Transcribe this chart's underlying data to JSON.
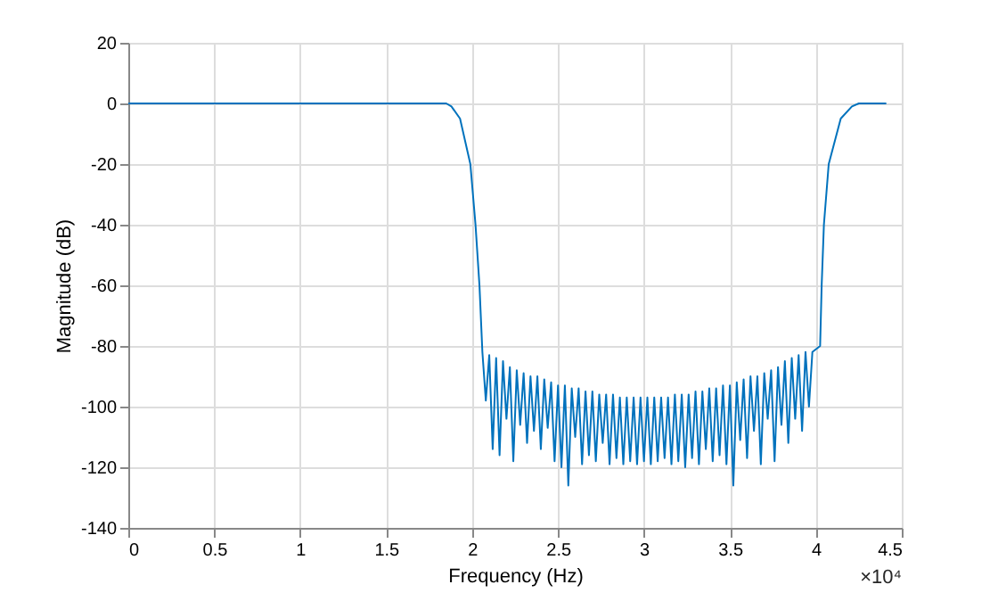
{
  "chart_data": {
    "type": "line",
    "xlabel": "Frequency (Hz)",
    "ylabel": "Magnitude (dB)",
    "annotations": [
      "×10⁴"
    ],
    "xlim": [
      0,
      4.5
    ],
    "ylim": [
      -140,
      20
    ],
    "xticks": [
      0,
      0.5,
      1,
      1.5,
      2,
      2.5,
      3,
      3.5,
      4,
      4.5
    ],
    "yticks": [
      -140,
      -120,
      -100,
      -80,
      -60,
      -40,
      -20,
      0,
      20
    ],
    "grid": true,
    "line_style": "solid",
    "series": [
      {
        "color": "#0072bd",
        "x": [
          0,
          1.8,
          1.85,
          1.88,
          1.93,
          1.99,
          2.02,
          2.043,
          2.06,
          2.08,
          2.1,
          2.12,
          2.14,
          2.16,
          2.18,
          2.2,
          2.22,
          2.24,
          2.26,
          2.28,
          2.3,
          2.32,
          2.34,
          2.36,
          2.38,
          2.4,
          2.42,
          2.44,
          2.46,
          2.48,
          2.5,
          2.52,
          2.54,
          2.56,
          2.58,
          2.6,
          2.62,
          2.64,
          2.66,
          2.68,
          2.7,
          2.72,
          2.74,
          2.76,
          2.78,
          2.8,
          2.82,
          2.84,
          2.86,
          2.88,
          2.9,
          2.92,
          2.94,
          2.96,
          2.98,
          3,
          3.02,
          3.04,
          3.06,
          3.08,
          3.1,
          3.12,
          3.14,
          3.16,
          3.18,
          3.2,
          3.22,
          3.24,
          3.26,
          3.28,
          3.3,
          3.32,
          3.34,
          3.36,
          3.38,
          3.4,
          3.42,
          3.44,
          3.46,
          3.48,
          3.5,
          3.52,
          3.54,
          3.56,
          3.58,
          3.6,
          3.62,
          3.64,
          3.66,
          3.68,
          3.7,
          3.72,
          3.74,
          3.76,
          3.78,
          3.8,
          3.82,
          3.84,
          3.86,
          3.88,
          3.9,
          3.92,
          3.94,
          3.96,
          3.98,
          4.025,
          4.034,
          4.047,
          4.075,
          4.145,
          4.21,
          4.25,
          4.41
        ],
        "values": [
          0,
          0,
          0,
          -1,
          -5,
          -20,
          -40,
          -60,
          -82,
          -98,
          -83,
          -114,
          -84,
          -116,
          -85,
          -104,
          -87,
          -118,
          -88,
          -106,
          -89,
          -112,
          -90,
          -108,
          -90,
          -114,
          -91,
          -107,
          -92,
          -118,
          -93,
          -120,
          -93,
          -126,
          -94,
          -110,
          -94,
          -119,
          -95,
          -116,
          -95,
          -118,
          -96,
          -112,
          -96,
          -119,
          -96,
          -117,
          -97,
          -119,
          -97,
          -118,
          -97,
          -119,
          -97,
          -118,
          -97,
          -119,
          -97,
          -118,
          -97,
          -117,
          -97,
          -119,
          -96,
          -118,
          -96,
          -120,
          -96,
          -117,
          -95,
          -119,
          -95,
          -114,
          -94,
          -118,
          -94,
          -116,
          -93,
          -119,
          -93,
          -126,
          -92,
          -111,
          -91,
          -117,
          -90,
          -108,
          -90,
          -119,
          -89,
          -104,
          -88,
          -118,
          -87,
          -106,
          -85,
          -112,
          -84,
          -104,
          -83,
          -108,
          -82,
          -100,
          -82,
          -80,
          -60,
          -40,
          -20,
          -5,
          -1,
          0,
          0
        ]
      }
    ]
  }
}
